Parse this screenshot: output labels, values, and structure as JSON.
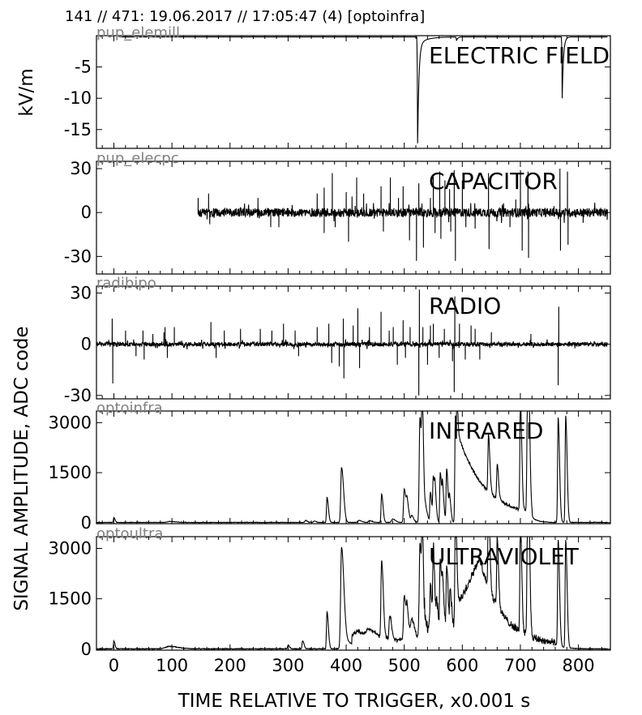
{
  "header": {
    "title": "141 // 471:   19.06.2017 // 17:05:47 (4)  [optoinfra]"
  },
  "axes": {
    "xlabel": "TIME RELATIVE TO TRIGGER,   x0.001 s",
    "ylabel_top": "kV/m",
    "ylabel_common": "SIGNAL AMPLITUDE,  ADC code"
  },
  "chart_data": [
    {
      "type": "line",
      "channel": "pup_elemill",
      "label": "ELECTRIC FIELD",
      "xlim": [
        -30,
        855
      ],
      "ylim": [
        -18,
        0
      ],
      "yticks": [
        -5,
        -10,
        -15
      ],
      "trace": {
        "start": 10,
        "end": 850,
        "base": -0.2,
        "events": [
          {
            "x": 523,
            "amp": -17
          },
          {
            "x": 772,
            "amp": -9.8
          },
          {
            "x": 590,
            "amp": -0.6
          }
        ]
      }
    },
    {
      "type": "line",
      "channel": "pup_elecpc",
      "label": "CAPACITOR",
      "xlim": [
        -30,
        855
      ],
      "ylim": [
        -42,
        35
      ],
      "yticks": [
        30,
        0,
        -30
      ],
      "trace": {
        "start": 145,
        "end": 850,
        "noise": 3,
        "seed": 3,
        "spikes": [
          {
            "x": 145,
            "amp": 10
          },
          {
            "x": 163,
            "amp": 13
          },
          {
            "x": 165,
            "amp": -8
          },
          {
            "x": 248,
            "amp": 10
          },
          {
            "x": 270,
            "amp": -10
          },
          {
            "x": 284,
            "amp": -10
          },
          {
            "x": 350,
            "amp": 13
          },
          {
            "x": 362,
            "amp": 17
          },
          {
            "x": 362,
            "amp": -14
          },
          {
            "x": 376,
            "amp": 27
          },
          {
            "x": 381,
            "amp": -10
          },
          {
            "x": 400,
            "amp": 14
          },
          {
            "x": 404,
            "amp": -20
          },
          {
            "x": 410,
            "amp": 11
          },
          {
            "x": 418,
            "amp": 24
          },
          {
            "x": 430,
            "amp": 13
          },
          {
            "x": 460,
            "amp": 18
          },
          {
            "x": 464,
            "amp": -13
          },
          {
            "x": 476,
            "amp": 24
          },
          {
            "x": 490,
            "amp": 10
          },
          {
            "x": 498,
            "amp": 18
          },
          {
            "x": 509,
            "amp": -19
          },
          {
            "x": 521,
            "amp": -33
          },
          {
            "x": 525,
            "amp": 20
          },
          {
            "x": 533,
            "amp": -24
          },
          {
            "x": 545,
            "amp": 10
          },
          {
            "x": 550,
            "amp": 26
          },
          {
            "x": 553,
            "amp": -14
          },
          {
            "x": 561,
            "amp": 28
          },
          {
            "x": 563,
            "amp": -18
          },
          {
            "x": 570,
            "amp": 22
          },
          {
            "x": 578,
            "amp": 16
          },
          {
            "x": 580,
            "amp": -13
          },
          {
            "x": 586,
            "amp": 29
          },
          {
            "x": 588,
            "amp": -33
          },
          {
            "x": 600,
            "amp": 22
          },
          {
            "x": 606,
            "amp": -10
          },
          {
            "x": 622,
            "amp": -11
          },
          {
            "x": 645,
            "amp": 27
          },
          {
            "x": 646,
            "amp": -25
          },
          {
            "x": 682,
            "amp": -10
          },
          {
            "x": 692,
            "amp": 9
          },
          {
            "x": 700,
            "amp": 29
          },
          {
            "x": 703,
            "amp": -26
          },
          {
            "x": 713,
            "amp": 28
          },
          {
            "x": 714,
            "amp": -31
          },
          {
            "x": 768,
            "amp": 30
          },
          {
            "x": 769,
            "amp": -26
          },
          {
            "x": 781,
            "amp": 28
          },
          {
            "x": 782,
            "amp": -22
          },
          {
            "x": 808,
            "amp": -7
          }
        ]
      }
    },
    {
      "type": "line",
      "channel": "radibipo",
      "label": "RADIO",
      "xlim": [
        -30,
        855
      ],
      "ylim": [
        -32,
        34
      ],
      "yticks": [
        30,
        0,
        -30
      ],
      "trace": {
        "start": -30,
        "end": 850,
        "noise": 1.2,
        "seed": 7,
        "spikes": [
          {
            "x": -3,
            "amp": 15
          },
          {
            "x": -2,
            "amp": -23
          },
          {
            "x": 20,
            "amp": 8
          },
          {
            "x": 38,
            "amp": -7
          },
          {
            "x": 50,
            "amp": 8
          },
          {
            "x": 52,
            "amp": -9
          },
          {
            "x": 67,
            "amp": 6
          },
          {
            "x": 86,
            "amp": 7
          },
          {
            "x": 88,
            "amp": 10
          },
          {
            "x": 92,
            "amp": -8
          },
          {
            "x": 104,
            "amp": 10
          },
          {
            "x": 167,
            "amp": 13
          },
          {
            "x": 176,
            "amp": -8
          },
          {
            "x": 190,
            "amp": 8
          },
          {
            "x": 218,
            "amp": 9
          },
          {
            "x": 252,
            "amp": 9
          },
          {
            "x": 272,
            "amp": 8
          },
          {
            "x": 292,
            "amp": 12
          },
          {
            "x": 312,
            "amp": 8
          },
          {
            "x": 318,
            "amp": -7
          },
          {
            "x": 350,
            "amp": 10
          },
          {
            "x": 370,
            "amp": 12
          },
          {
            "x": 375,
            "amp": -11
          },
          {
            "x": 388,
            "amp": -13
          },
          {
            "x": 395,
            "amp": 15
          },
          {
            "x": 396,
            "amp": -20
          },
          {
            "x": 412,
            "amp": 11
          },
          {
            "x": 420,
            "amp": 21
          },
          {
            "x": 423,
            "amp": -14
          },
          {
            "x": 440,
            "amp": 10
          },
          {
            "x": 460,
            "amp": 19
          },
          {
            "x": 474,
            "amp": 8
          },
          {
            "x": 481,
            "amp": 10
          },
          {
            "x": 488,
            "amp": -12
          },
          {
            "x": 498,
            "amp": 14
          },
          {
            "x": 502,
            "amp": -8
          },
          {
            "x": 510,
            "amp": 10
          },
          {
            "x": 525,
            "amp": -30
          },
          {
            "x": 526,
            "amp": 32
          },
          {
            "x": 532,
            "amp": 10
          },
          {
            "x": 540,
            "amp": -12
          },
          {
            "x": 545,
            "amp": 11
          },
          {
            "x": 550,
            "amp": 12
          },
          {
            "x": 560,
            "amp": -8
          },
          {
            "x": 569,
            "amp": 9
          },
          {
            "x": 583,
            "amp": -10
          },
          {
            "x": 586,
            "amp": -28
          },
          {
            "x": 587,
            "amp": 28
          },
          {
            "x": 595,
            "amp": 12
          },
          {
            "x": 605,
            "amp": -9
          },
          {
            "x": 615,
            "amp": 11
          },
          {
            "x": 622,
            "amp": 9
          },
          {
            "x": 630,
            "amp": -9
          },
          {
            "x": 650,
            "amp": 7
          },
          {
            "x": 718,
            "amp": 6
          },
          {
            "x": 765,
            "amp": -24
          },
          {
            "x": 766,
            "amp": 22
          }
        ]
      }
    },
    {
      "type": "line",
      "channel": "optoinfra",
      "label": "INFRARED",
      "xlim": [
        -30,
        855
      ],
      "ylim": [
        -30,
        3350
      ],
      "yticks": [
        3000,
        1500,
        0
      ],
      "trace": {
        "start": -30,
        "end": 850,
        "base": 8,
        "noise": 6,
        "seed": 11,
        "pulses": [
          {
            "x": 0,
            "amp": 150,
            "w": 1.2
          },
          {
            "x": 96,
            "amp": 30,
            "w": 6
          },
          {
            "x": 330,
            "amp": 60,
            "w": 2
          },
          {
            "x": 345,
            "amp": 40,
            "w": 2
          },
          {
            "x": 367,
            "amp": 750,
            "w": 1.5
          },
          {
            "x": 392,
            "amp": 1650,
            "w": 2.2
          },
          {
            "x": 422,
            "amp": 60,
            "w": 3
          },
          {
            "x": 440,
            "amp": 50,
            "w": 3
          },
          {
            "x": 461,
            "amp": 850,
            "w": 1.5
          },
          {
            "x": 480,
            "amp": 100,
            "w": 3
          },
          {
            "x": 500,
            "amp": 1000,
            "w": 2
          },
          {
            "x": 505,
            "amp": 480,
            "w": 2
          },
          {
            "x": 513,
            "amp": 200,
            "w": 2
          },
          {
            "x": 527,
            "amp": 3150,
            "w": 2
          },
          {
            "x": 531,
            "amp": 2800,
            "w": 1.5
          },
          {
            "x": 537,
            "amp": 400,
            "w": 2
          },
          {
            "x": 545,
            "amp": 900,
            "w": 1.5
          },
          {
            "x": 550,
            "amp": 1300,
            "w": 1.5
          },
          {
            "x": 553,
            "amp": 700,
            "w": 1.5
          },
          {
            "x": 562,
            "amp": 1500,
            "w": 1.5
          },
          {
            "x": 566,
            "amp": 900,
            "w": 1.5
          },
          {
            "x": 573,
            "amp": 1600,
            "w": 1.5
          },
          {
            "x": 578,
            "amp": 700,
            "w": 1.5
          },
          {
            "x": 588,
            "amp": 3200,
            "w": 1.5
          },
          {
            "x": 645,
            "amp": 1700,
            "w": 1.5
          },
          {
            "x": 660,
            "amp": 1050,
            "w": 1.5
          },
          {
            "x": 700,
            "amp": 3200,
            "w": 1.5
          },
          {
            "x": 712,
            "amp": 3100,
            "w": 1.5
          },
          {
            "x": 714,
            "amp": 3000,
            "w": 1.5
          },
          {
            "x": 765,
            "amp": 3150,
            "w": 1.5
          },
          {
            "x": 778,
            "amp": 3200,
            "w": 1.5
          }
        ],
        "decay": {
          "start": 590,
          "end": 720,
          "peak": 2800,
          "tau": 45,
          "floor": 150
        }
      }
    },
    {
      "type": "line",
      "channel": "optoultra",
      "label": "ULTRAVIOLET",
      "xlim": [
        -30,
        855
      ],
      "ylim": [
        -30,
        3350
      ],
      "yticks": [
        3000,
        1500,
        0
      ],
      "trace": {
        "start": -30,
        "end": 850,
        "base": 10,
        "noise": 10,
        "seed": 21,
        "pulses": [
          {
            "x": 0,
            "amp": 230,
            "w": 1.2
          },
          {
            "x": 95,
            "amp": 70,
            "w": 10
          },
          {
            "x": 300,
            "amp": 110,
            "w": 1.5
          },
          {
            "x": 325,
            "amp": 240,
            "w": 1.5
          },
          {
            "x": 367,
            "amp": 1100,
            "w": 1.5
          },
          {
            "x": 392,
            "amp": 3000,
            "w": 2.5
          },
          {
            "x": 400,
            "amp": 220,
            "w": 6
          },
          {
            "x": 420,
            "amp": 200,
            "w": 8
          },
          {
            "x": 440,
            "amp": 250,
            "w": 8
          },
          {
            "x": 461,
            "amp": 2300,
            "w": 1.8
          },
          {
            "x": 475,
            "amp": 700,
            "w": 2
          },
          {
            "x": 500,
            "amp": 1300,
            "w": 2
          },
          {
            "x": 505,
            "amp": 700,
            "w": 2
          },
          {
            "x": 513,
            "amp": 600,
            "w": 3
          },
          {
            "x": 527,
            "amp": 3150,
            "w": 2
          },
          {
            "x": 531,
            "amp": 2900,
            "w": 1.5
          },
          {
            "x": 545,
            "amp": 1300,
            "w": 1.5
          },
          {
            "x": 550,
            "amp": 2300,
            "w": 1.5
          },
          {
            "x": 556,
            "amp": 800,
            "w": 1.5
          },
          {
            "x": 562,
            "amp": 2100,
            "w": 1.5
          },
          {
            "x": 566,
            "amp": 1200,
            "w": 1.5
          },
          {
            "x": 573,
            "amp": 1800,
            "w": 1.5
          },
          {
            "x": 579,
            "amp": 1100,
            "w": 1.5
          },
          {
            "x": 588,
            "amp": 3200,
            "w": 1.5
          },
          {
            "x": 645,
            "amp": 2600,
            "w": 1.5
          },
          {
            "x": 660,
            "amp": 2000,
            "w": 1.5
          },
          {
            "x": 700,
            "amp": 3200,
            "w": 1.5
          },
          {
            "x": 712,
            "amp": 3100,
            "w": 1.5
          },
          {
            "x": 714,
            "amp": 3000,
            "w": 1.5
          },
          {
            "x": 765,
            "amp": 3150,
            "w": 1.5
          },
          {
            "x": 778,
            "amp": 3200,
            "w": 1.5
          }
        ],
        "segments": [
          {
            "from": 410,
            "to": 525,
            "y": 280,
            "jitter": 90
          },
          {
            "from": 535,
            "to": 590,
            "y": 650,
            "jitter": 260
          }
        ],
        "plateau": {
          "start": 590,
          "peak_x": 630,
          "peak": 2700,
          "end": 760,
          "tau": 38,
          "floor": 100
        }
      }
    }
  ],
  "xaxis": {
    "ticks": [
      0,
      100,
      200,
      300,
      400,
      500,
      600,
      700,
      800
    ]
  }
}
